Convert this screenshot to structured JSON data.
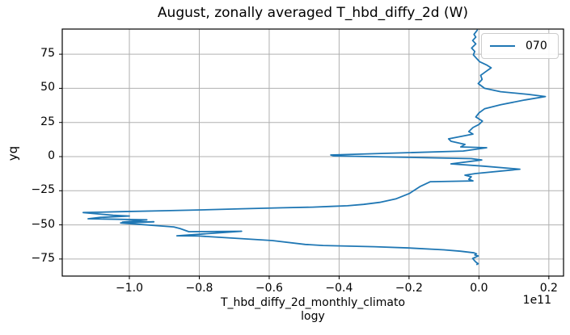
{
  "colors": {
    "line": "#1f77b4",
    "grid": "#b0b0b0",
    "spine": "#000000",
    "background": "#ffffff",
    "text": "#000000",
    "legend_border": "#cccccc"
  },
  "chart_data": {
    "type": "line",
    "title": "August, zonally averaged T_hbd_diffy_2d (W)",
    "ylabel": "yq",
    "xlabel_lines": [
      "T_hbd_diffy_2d_monthly_climato",
      "logy"
    ],
    "x_offset_text": "1e11",
    "x_units_factor": "1e11",
    "grid": true,
    "xlim": [
      -1.192,
      0.242
    ],
    "ylim": [
      -87.5,
      93.4
    ],
    "xticks": {
      "values": [
        -1.0,
        -0.8,
        -0.6,
        -0.4,
        -0.2,
        0.0,
        0.2
      ],
      "labels": [
        "−1.0",
        "−0.8",
        "−0.6",
        "−0.4",
        "−0.2",
        "0.0",
        "0.2"
      ]
    },
    "yticks": {
      "values": [
        -75,
        -50,
        -25,
        0,
        25,
        50,
        75
      ],
      "labels": [
        "−75",
        "−50",
        "−25",
        "0",
        "25",
        "50",
        "75"
      ]
    },
    "legend": {
      "position": "upper right",
      "entries": [
        {
          "label": "070",
          "color": "#1f77b4"
        }
      ]
    },
    "series": [
      {
        "name": "070",
        "color": "#1f77b4",
        "points_format": "[value_in_1e11_W, yq_latitude]",
        "points": [
          [
            -0.005,
            92.5
          ],
          [
            -0.014,
            89.5
          ],
          [
            -0.009,
            87.5
          ],
          [
            -0.018,
            85.0
          ],
          [
            -0.009,
            82.5
          ],
          [
            -0.021,
            79.5
          ],
          [
            -0.012,
            77.0
          ],
          [
            -0.016,
            74.5
          ],
          [
            -0.007,
            72.0
          ],
          [
            0.002,
            69.5
          ],
          [
            0.023,
            67.0
          ],
          [
            0.035,
            65.0
          ],
          [
            0.021,
            62.5
          ],
          [
            0.005,
            59.5
          ],
          [
            0.009,
            56.5
          ],
          [
            -0.002,
            53.5
          ],
          [
            0.016,
            50.0
          ],
          [
            0.062,
            47.5
          ],
          [
            0.143,
            45.5
          ],
          [
            0.19,
            44.0
          ],
          [
            0.132,
            41.5
          ],
          [
            0.062,
            38.0
          ],
          [
            0.016,
            35.0
          ],
          [
            0.0,
            32.0
          ],
          [
            -0.009,
            29.0
          ],
          [
            0.01,
            26.0
          ],
          [
            0.0,
            23.5
          ],
          [
            -0.017,
            21.3
          ],
          [
            -0.029,
            18.3
          ],
          [
            -0.017,
            16.5
          ],
          [
            -0.087,
            13.0
          ],
          [
            -0.08,
            11.2
          ],
          [
            -0.04,
            8.9
          ],
          [
            -0.052,
            7.1
          ],
          [
            0.022,
            6.5
          ],
          [
            -0.045,
            4.1
          ],
          [
            -0.424,
            1.2
          ],
          [
            -0.415,
            0.5
          ],
          [
            -0.022,
            -1.5
          ],
          [
            0.008,
            -2.5
          ],
          [
            -0.08,
            -5.3
          ],
          [
            0.013,
            -7.0
          ],
          [
            0.117,
            -9.2
          ],
          [
            -0.01,
            -12.4
          ],
          [
            -0.04,
            -13.6
          ],
          [
            -0.022,
            -14.8
          ],
          [
            -0.029,
            -16.6
          ],
          [
            -0.017,
            -17.8
          ],
          [
            -0.139,
            -18.4
          ],
          [
            -0.169,
            -22.0
          ],
          [
            -0.199,
            -27.0
          ],
          [
            -0.238,
            -31.0
          ],
          [
            -0.284,
            -33.5
          ],
          [
            -0.33,
            -35.0
          ],
          [
            -0.376,
            -36.0
          ],
          [
            -0.423,
            -36.5
          ],
          [
            -0.476,
            -37.0
          ],
          [
            -0.561,
            -37.5
          ],
          [
            -0.677,
            -38.2
          ],
          [
            -0.792,
            -39.0
          ],
          [
            -0.908,
            -39.7
          ],
          [
            -1.023,
            -40.3
          ],
          [
            -1.132,
            -41.0
          ],
          [
            -1.046,
            -43.0
          ],
          [
            -1.0,
            -43.5
          ],
          [
            -1.083,
            -44.5
          ],
          [
            -1.118,
            -45.5
          ],
          [
            -0.95,
            -46.3
          ],
          [
            -1.02,
            -48.0
          ],
          [
            -0.93,
            -47.8
          ],
          [
            -1.025,
            -48.6
          ],
          [
            -0.873,
            -51.5
          ],
          [
            -0.855,
            -52.7
          ],
          [
            -0.83,
            -55.0
          ],
          [
            -0.679,
            -54.7
          ],
          [
            -0.864,
            -58.0
          ],
          [
            -0.8,
            -58.2
          ],
          [
            -0.591,
            -61.5
          ],
          [
            -0.497,
            -64.3
          ],
          [
            -0.446,
            -65.1
          ],
          [
            -0.3,
            -66.0
          ],
          [
            -0.199,
            -66.9
          ],
          [
            -0.1,
            -68.3
          ],
          [
            -0.053,
            -69.3
          ],
          [
            -0.014,
            -70.5
          ],
          [
            -0.007,
            -71.2
          ],
          [
            -0.012,
            -72.0
          ],
          [
            -0.002,
            -72.8
          ],
          [
            -0.018,
            -74.6
          ],
          [
            -0.012,
            -76.4
          ],
          [
            -0.007,
            -77.6
          ],
          [
            -0.002,
            -78.4
          ],
          [
            -0.006,
            -79.0
          ]
        ]
      }
    ]
  }
}
